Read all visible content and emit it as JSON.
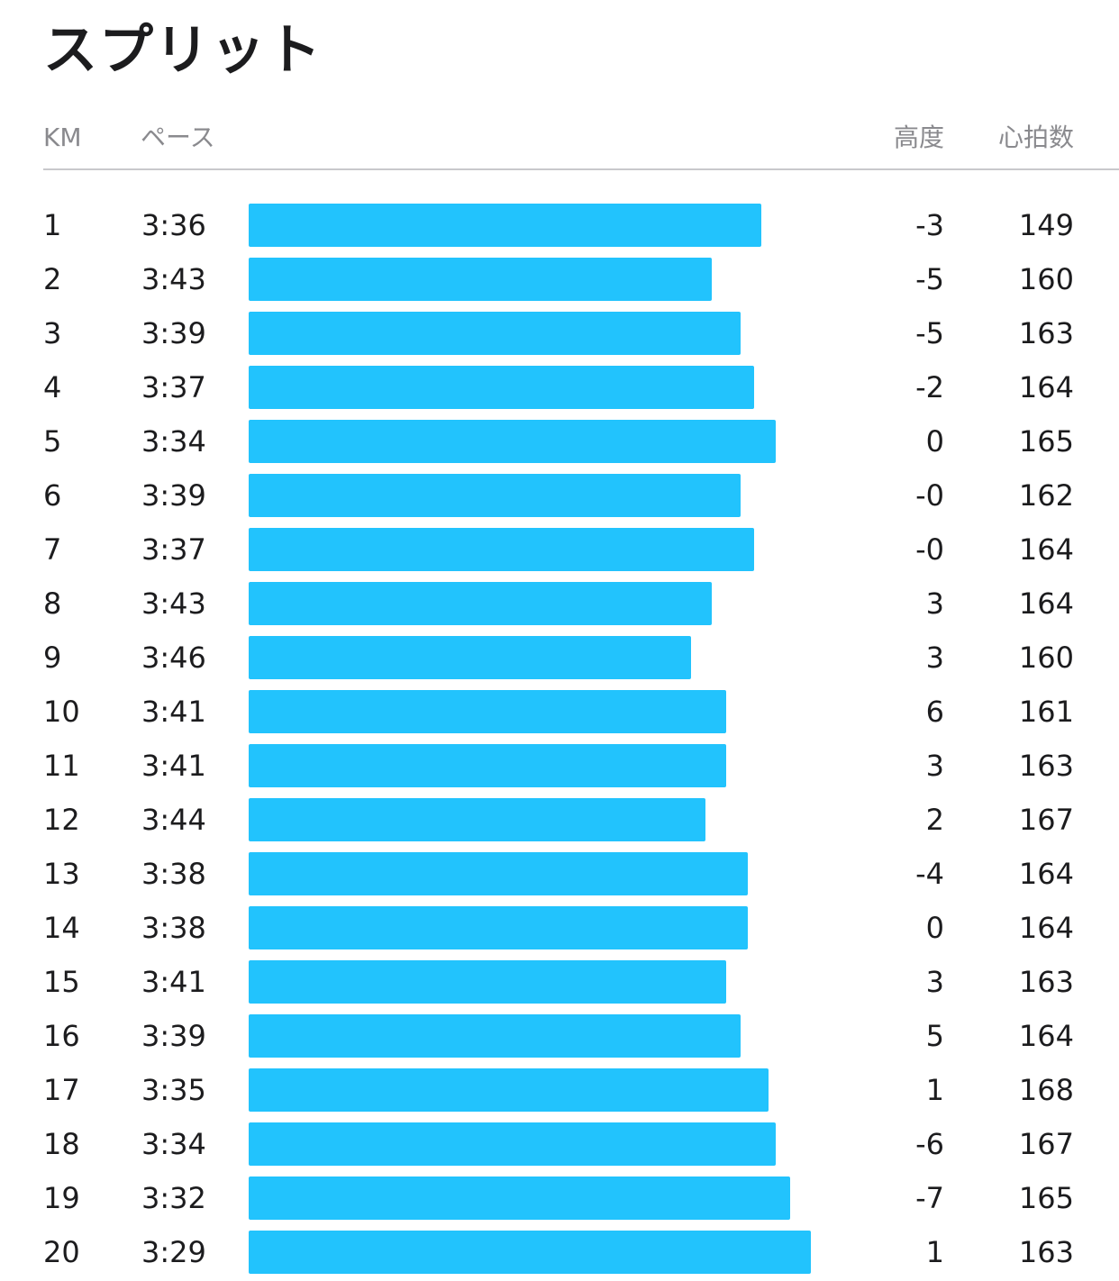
{
  "title": "スプリット",
  "header": {
    "km": "KM",
    "pace": "ペース",
    "elevation": "高度",
    "heart_rate": "心拍数"
  },
  "colors": {
    "bar": "#22c3fd",
    "header_text": "#8a8a8e",
    "divider": "#c8c8cc"
  },
  "splits": [
    {
      "km": "1",
      "pace": "3:36",
      "elevation": "-3",
      "heart_rate": "149"
    },
    {
      "km": "2",
      "pace": "3:43",
      "elevation": "-5",
      "heart_rate": "160"
    },
    {
      "km": "3",
      "pace": "3:39",
      "elevation": "-5",
      "heart_rate": "163"
    },
    {
      "km": "4",
      "pace": "3:37",
      "elevation": "-2",
      "heart_rate": "164"
    },
    {
      "km": "5",
      "pace": "3:34",
      "elevation": "0",
      "heart_rate": "165"
    },
    {
      "km": "6",
      "pace": "3:39",
      "elevation": "-0",
      "heart_rate": "162"
    },
    {
      "km": "7",
      "pace": "3:37",
      "elevation": "-0",
      "heart_rate": "164"
    },
    {
      "km": "8",
      "pace": "3:43",
      "elevation": "3",
      "heart_rate": "164"
    },
    {
      "km": "9",
      "pace": "3:46",
      "elevation": "3",
      "heart_rate": "160"
    },
    {
      "km": "10",
      "pace": "3:41",
      "elevation": "6",
      "heart_rate": "161"
    },
    {
      "km": "11",
      "pace": "3:41",
      "elevation": "3",
      "heart_rate": "163"
    },
    {
      "km": "12",
      "pace": "3:44",
      "elevation": "2",
      "heart_rate": "167"
    },
    {
      "km": "13",
      "pace": "3:38",
      "elevation": "-4",
      "heart_rate": "164"
    },
    {
      "km": "14",
      "pace": "3:38",
      "elevation": "0",
      "heart_rate": "164"
    },
    {
      "km": "15",
      "pace": "3:41",
      "elevation": "3",
      "heart_rate": "163"
    },
    {
      "km": "16",
      "pace": "3:39",
      "elevation": "5",
      "heart_rate": "164"
    },
    {
      "km": "17",
      "pace": "3:35",
      "elevation": "1",
      "heart_rate": "168"
    },
    {
      "km": "18",
      "pace": "3:34",
      "elevation": "-6",
      "heart_rate": "167"
    },
    {
      "km": "19",
      "pace": "3:32",
      "elevation": "-7",
      "heart_rate": "165"
    },
    {
      "km": "20",
      "pace": "3:29",
      "elevation": "1",
      "heart_rate": "163"
    }
  ]
}
